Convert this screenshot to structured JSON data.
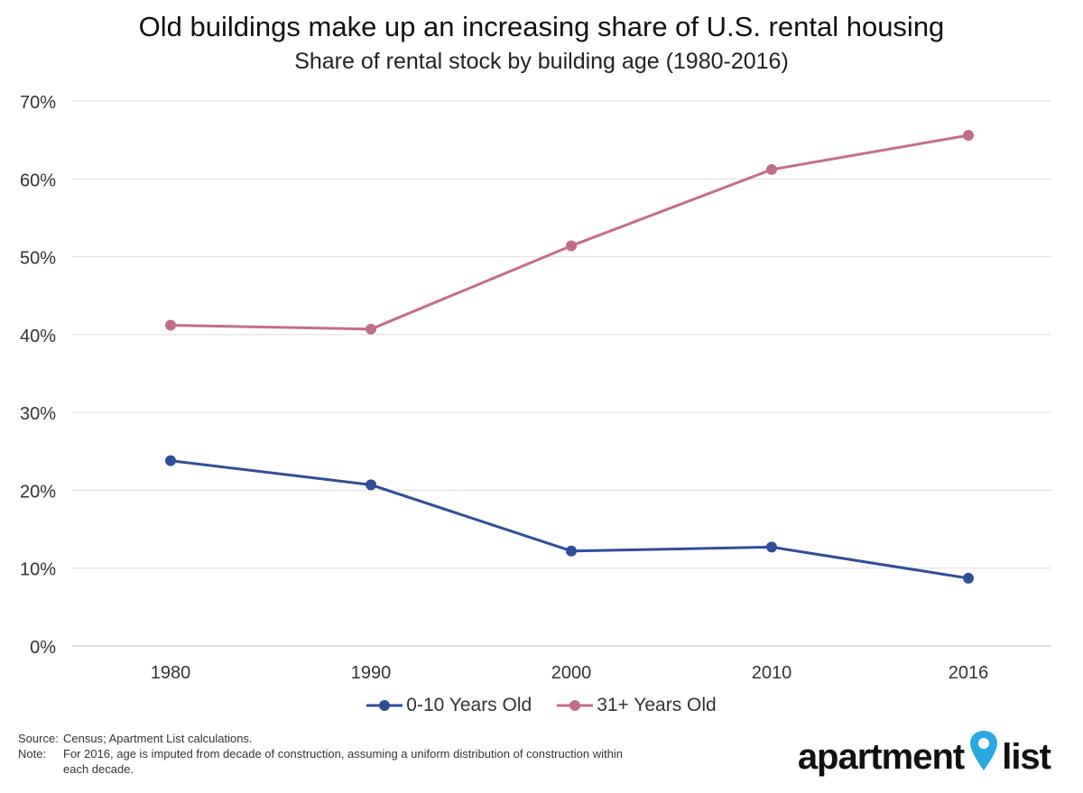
{
  "chart_data": {
    "type": "line",
    "title": "Old buildings make up an increasing share of U.S. rental housing",
    "subtitle": "Share of rental stock by building age (1980-2016)",
    "xlabel": "",
    "ylabel": "",
    "categories": [
      "1980",
      "1990",
      "2000",
      "2010",
      "2016"
    ],
    "ylim": [
      0,
      70
    ],
    "yticks": [
      "0%",
      "10%",
      "20%",
      "30%",
      "40%",
      "50%",
      "60%",
      "70%"
    ],
    "grid": true,
    "legend_position": "bottom",
    "series": [
      {
        "name": "0-10 Years Old",
        "color": "#2F4F99",
        "values": [
          23.8,
          20.7,
          12.2,
          12.7,
          8.7
        ]
      },
      {
        "name": "31+ Years Old",
        "color": "#C46C8B",
        "values": [
          41.2,
          40.7,
          51.4,
          61.2,
          65.6
        ]
      }
    ]
  },
  "footer": {
    "source_label": "Source:",
    "source_text": "Census; Apartment List calculations.",
    "note_label": "Note:",
    "note_text": "For 2016, age is imputed from decade of construction, assuming a uniform distribution of construction within each decade."
  },
  "logo": {
    "text_left": "apartment",
    "text_right": "list",
    "pin_color": "#29A8E0"
  }
}
